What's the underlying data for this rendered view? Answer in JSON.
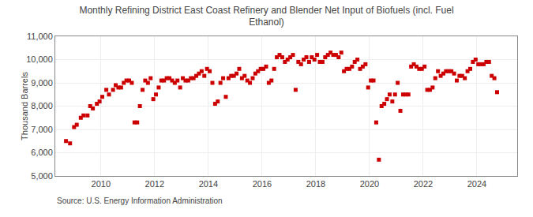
{
  "chart_data": {
    "type": "scatter",
    "title": "Monthly Refining District East Coast Refinery and Blender Net Input of Biofuels (incl. Fuel\nEthanol)",
    "ylabel": "Thousand Barrels",
    "annotations": [
      "Source: U.S. Energy Information Administration"
    ],
    "color": "#cc0000",
    "marker": "square",
    "grid": true,
    "xlim": [
      2008.3,
      2025.5
    ],
    "xticks": [
      2010,
      2012,
      2014,
      2016,
      2018,
      2020,
      2022,
      2024
    ],
    "ylim": [
      5000,
      11000
    ],
    "yticks": [
      {
        "value": 5000,
        "label": "5,000"
      },
      {
        "value": 6000,
        "label": "6,000"
      },
      {
        "value": 7000,
        "label": "7,000"
      },
      {
        "value": 8000,
        "label": "8,000"
      },
      {
        "value": 9000,
        "label": "9,000"
      },
      {
        "value": 10000,
        "label": "10,000"
      },
      {
        "value": 11000,
        "label": "11,000"
      }
    ],
    "x": [
      2008.7,
      2008.85,
      2009.0,
      2009.1,
      2009.25,
      2009.35,
      2009.5,
      2009.6,
      2009.7,
      2009.85,
      2009.95,
      2010.05,
      2010.2,
      2010.3,
      2010.45,
      2010.55,
      2010.65,
      2010.75,
      2010.85,
      2010.95,
      2011.05,
      2011.15,
      2011.25,
      2011.35,
      2011.45,
      2011.55,
      2011.65,
      2011.75,
      2011.85,
      2011.95,
      2012.05,
      2012.15,
      2012.25,
      2012.35,
      2012.45,
      2012.55,
      2012.65,
      2012.75,
      2012.85,
      2012.95,
      2013.05,
      2013.15,
      2013.25,
      2013.35,
      2013.45,
      2013.55,
      2013.65,
      2013.75,
      2013.85,
      2013.95,
      2014.05,
      2014.15,
      2014.25,
      2014.35,
      2014.45,
      2014.55,
      2014.65,
      2014.75,
      2014.85,
      2014.95,
      2015.05,
      2015.15,
      2015.25,
      2015.35,
      2015.45,
      2015.55,
      2015.65,
      2015.75,
      2015.85,
      2015.95,
      2016.05,
      2016.15,
      2016.25,
      2016.35,
      2016.45,
      2016.55,
      2016.65,
      2016.75,
      2016.85,
      2016.95,
      2017.05,
      2017.15,
      2017.25,
      2017.35,
      2017.45,
      2017.55,
      2017.65,
      2017.75,
      2017.85,
      2017.95,
      2018.05,
      2018.15,
      2018.25,
      2018.35,
      2018.45,
      2018.55,
      2018.65,
      2018.75,
      2018.85,
      2018.95,
      2019.05,
      2019.15,
      2019.25,
      2019.35,
      2019.45,
      2019.55,
      2019.65,
      2019.75,
      2019.85,
      2019.95,
      2020.05,
      2020.15,
      2020.25,
      2020.35,
      2020.45,
      2020.55,
      2020.65,
      2020.75,
      2020.85,
      2020.95,
      2021.05,
      2021.15,
      2021.25,
      2021.35,
      2021.45,
      2021.55,
      2021.65,
      2021.75,
      2021.85,
      2021.95,
      2022.05,
      2022.15,
      2022.25,
      2022.35,
      2022.45,
      2022.55,
      2022.65,
      2022.75,
      2022.85,
      2022.95,
      2023.05,
      2023.15,
      2023.25,
      2023.35,
      2023.45,
      2023.55,
      2023.65,
      2023.75,
      2023.85,
      2023.95,
      2024.05,
      2024.15,
      2024.25,
      2024.35,
      2024.45,
      2024.55,
      2024.65,
      2024.75
    ],
    "values": [
      6500,
      6400,
      7100,
      7200,
      7500,
      7600,
      7600,
      8000,
      7900,
      8100,
      8200,
      8400,
      8700,
      8500,
      8700,
      8900,
      8800,
      8800,
      9000,
      9100,
      9100,
      9000,
      7300,
      7300,
      8000,
      8700,
      9100,
      9000,
      9200,
      8300,
      8500,
      8800,
      9100,
      9100,
      9200,
      9200,
      9100,
      9000,
      9100,
      8800,
      9200,
      9100,
      9100,
      9200,
      9200,
      9300,
      9400,
      9500,
      9300,
      9600,
      9500,
      9000,
      8100,
      8200,
      9000,
      9200,
      8400,
      9200,
      9300,
      9300,
      9400,
      9600,
      9200,
      9300,
      9100,
      9000,
      9200,
      9400,
      9500,
      9600,
      9600,
      9700,
      9000,
      9100,
      9600,
      10100,
      10200,
      10100,
      9900,
      10000,
      10100,
      10200,
      8700,
      9900,
      9800,
      10000,
      10100,
      9900,
      10100,
      10000,
      10200,
      9900,
      9900,
      10100,
      10200,
      10300,
      10200,
      10200,
      10100,
      10300,
      9500,
      9600,
      9600,
      9700,
      9900,
      10000,
      9600,
      9700,
      9800,
      8800,
      9100,
      9100,
      7300,
      5700,
      8000,
      8100,
      8300,
      8500,
      8200,
      8500,
      9000,
      7800,
      8500,
      8500,
      8500,
      9700,
      9800,
      9700,
      9600,
      9600,
      9700,
      8700,
      8700,
      8800,
      9200,
      9500,
      9300,
      9400,
      9500,
      9500,
      9500,
      9400,
      9100,
      9300,
      9300,
      9200,
      9500,
      9600,
      9900,
      10000,
      9800,
      9800,
      9800,
      9900,
      9900,
      9300,
      9200,
      8600
    ]
  }
}
